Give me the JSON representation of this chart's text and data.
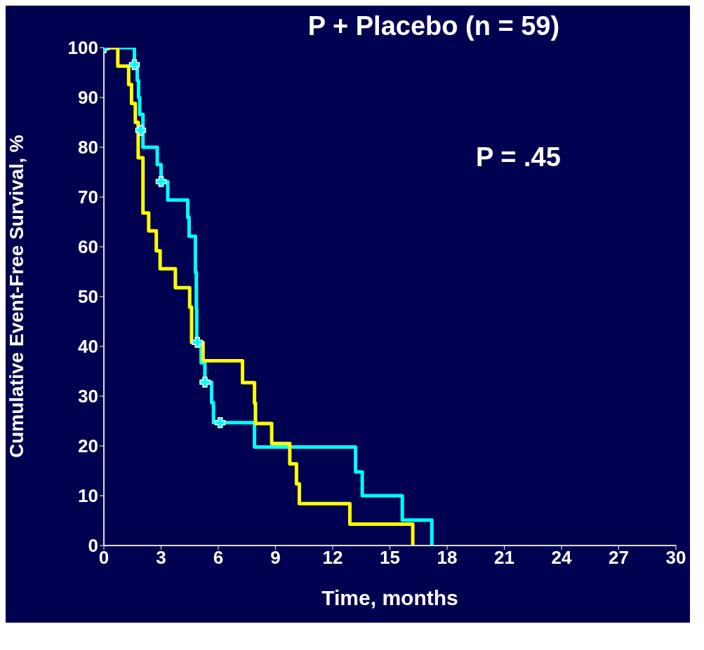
{
  "chart_data": {
    "type": "step",
    "title": "P + Placebo (n = 59)",
    "xlabel": "Time, months",
    "ylabel": "Cumulative Event-Free Survival, %",
    "annotations": [
      "P = .45"
    ],
    "xlim": [
      0,
      30
    ],
    "xticks": [
      0,
      3,
      6,
      9,
      12,
      15,
      18,
      21,
      24,
      27,
      30
    ],
    "ylim": [
      0,
      100
    ],
    "yticks": [
      0,
      10,
      20,
      30,
      40,
      50,
      60,
      70,
      80,
      90,
      100
    ],
    "grid": false,
    "legend": false,
    "line_style": "solid",
    "series": [
      {
        "color": "#ffff00",
        "x": [
          0,
          0.73,
          1.3,
          1.45,
          1.65,
          1.8,
          2.05,
          2.35,
          2.75,
          2.95,
          3.75,
          4.5,
          4.6,
          5.2,
          7.27,
          7.9,
          7.95,
          8.8,
          9.75,
          10.1,
          10.25,
          12.9,
          16.2
        ],
        "values": [
          100,
          96.3,
          92.6,
          88.8,
          85,
          77.9,
          66.8,
          63.2,
          59.2,
          55.6,
          51.8,
          47.9,
          40.8,
          37.1,
          32.7,
          28.6,
          24.5,
          20.5,
          16.4,
          12.4,
          8.4,
          4.3,
          0
        ]
      },
      {
        "color": "#00ffff",
        "x": [
          0,
          1.6,
          1.75,
          1.82,
          1.88,
          2.05,
          2.8,
          3.0,
          3.35,
          4.4,
          4.47,
          4.8,
          4.85,
          4.87,
          5.1,
          5.3,
          5.65,
          5.75,
          7.9,
          13.2,
          13.55,
          15.65,
          17.2
        ],
        "values": [
          100,
          96.6,
          93.4,
          90,
          86.6,
          80,
          76.5,
          73.1,
          69.4,
          65.9,
          62.1,
          54.9,
          47.5,
          40.8,
          36.7,
          32.8,
          28.7,
          24.7,
          19.8,
          14.8,
          10,
          5.1,
          0
        ]
      },
      {
        "type": "scatter",
        "color": "#00ffff",
        "marker": "cross",
        "x": [
          0,
          1.6,
          1.93,
          3.0,
          4.9,
          5.3,
          6.1
        ],
        "values": [
          100,
          96.6,
          83.4,
          73.1,
          40.8,
          32.8,
          24.7
        ]
      }
    ]
  }
}
